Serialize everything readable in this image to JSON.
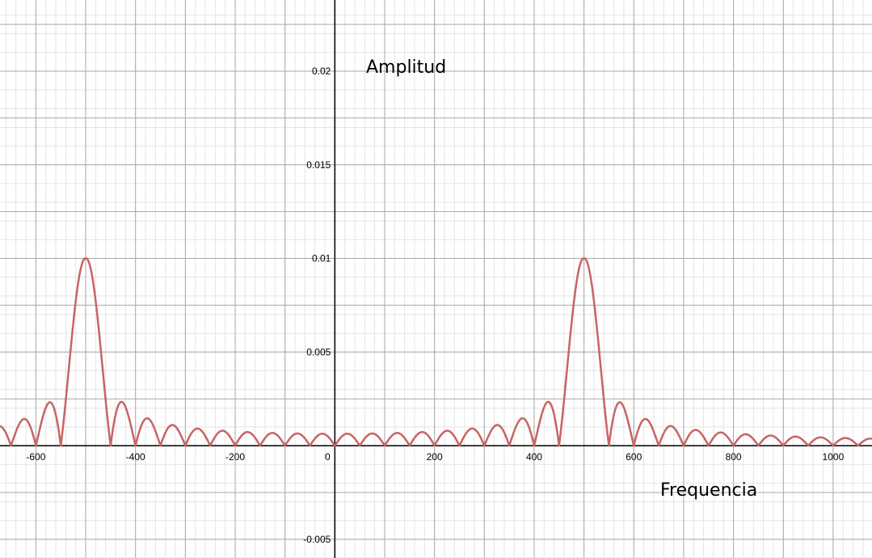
{
  "chart_data": {
    "type": "line",
    "title": "",
    "xlabel": "Frequencia",
    "ylabel": "Amplitud",
    "xlim": [
      -672,
      1078
    ],
    "ylim": [
      -0.006,
      0.0238
    ],
    "grid": true,
    "x_ticks": [
      -600,
      -400,
      -200,
      0,
      200,
      400,
      600,
      800,
      1000
    ],
    "x_tick_labels": [
      "-600",
      "-400",
      "-200",
      "0",
      "200",
      "400",
      "600",
      "800",
      "1000"
    ],
    "y_ticks": [
      -0.005,
      0.005,
      0.01,
      0.015,
      0.02
    ],
    "y_tick_labels": [
      "-0.005",
      "0.005",
      "0.01",
      "0.015",
      "0.02"
    ],
    "series": [
      {
        "color": "#c86464",
        "function": "0.01*|sinc((f-500)/50)| + 0.01*|sinc((f+500)/50)|",
        "peaks": [
          {
            "x": -500,
            "y": 0.01
          },
          {
            "x": 500,
            "y": 0.01
          }
        ]
      }
    ]
  }
}
